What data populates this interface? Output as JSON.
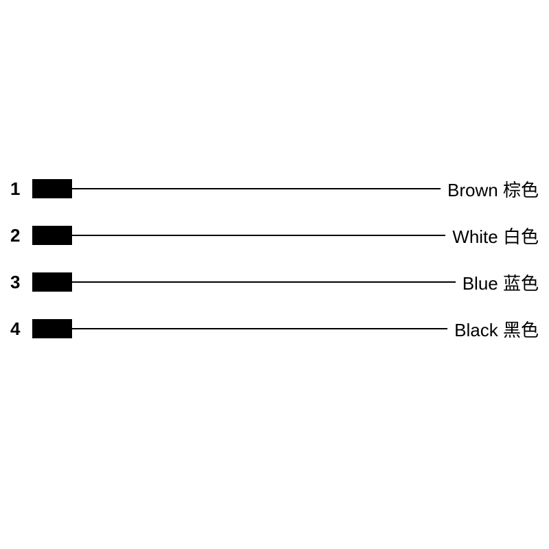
{
  "diagram": {
    "type": "pinout-wiring",
    "background_color": "#ffffff",
    "text_color": "#000000",
    "block_color": "#000000",
    "line_color": "#000000",
    "line_width": 2,
    "block_width": 58,
    "block_height": 28,
    "number_fontsize": 26,
    "number_fontweight": "bold",
    "label_fontsize": 26,
    "row_gap": 38,
    "pins": [
      {
        "number": "1",
        "label_en": "Brown",
        "label_zh": "棕色"
      },
      {
        "number": "2",
        "label_en": "White",
        "label_zh": "白色"
      },
      {
        "number": "3",
        "label_en": "Blue",
        "label_zh": "蓝色"
      },
      {
        "number": "4",
        "label_en": "Black",
        "label_zh": "黑色"
      }
    ]
  }
}
